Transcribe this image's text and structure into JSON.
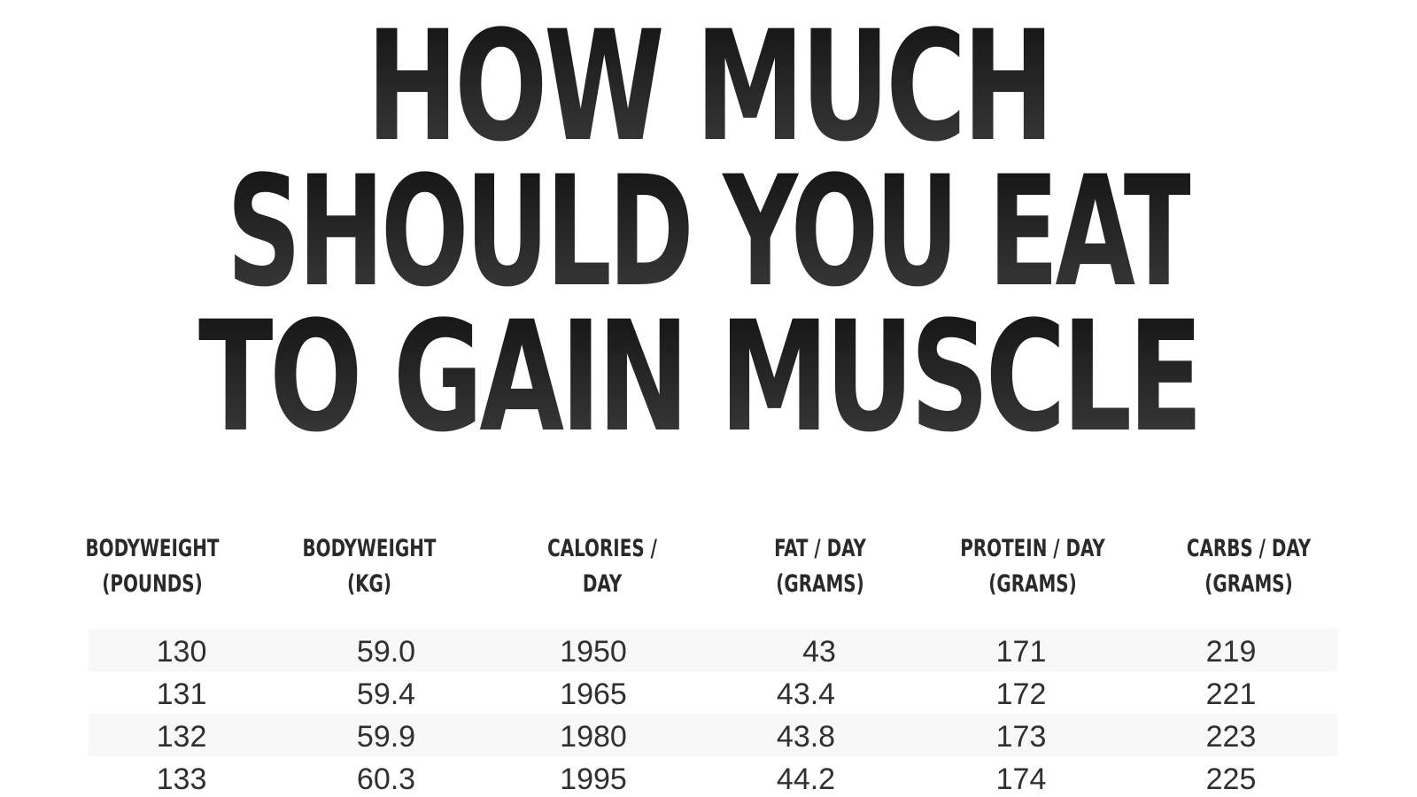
{
  "title": {
    "line1": "HOW MUCH",
    "line2": "SHOULD YOU EAT",
    "line3": "TO GAIN MUSCLE ?"
  },
  "table": {
    "columns": [
      "BODYWEIGHT\n(POUNDS)",
      "BODYWEIGHT\n(KG)",
      "CALORIES /\nDAY",
      "FAT / DAY\n(GRAMS)",
      "PROTEIN / DAY\n(GRAMS)",
      "CARBS / DAY\n(GRAMS)"
    ],
    "rows": [
      [
        "130",
        "59.0",
        "1950",
        "43",
        "171",
        "219"
      ],
      [
        "131",
        "59.4",
        "1965",
        "43.4",
        "172",
        "221"
      ],
      [
        "132",
        "59.9",
        "1980",
        "43.8",
        "173",
        "223"
      ],
      [
        "133",
        "60.3",
        "1995",
        "44.2",
        "174",
        "225"
      ]
    ]
  }
}
